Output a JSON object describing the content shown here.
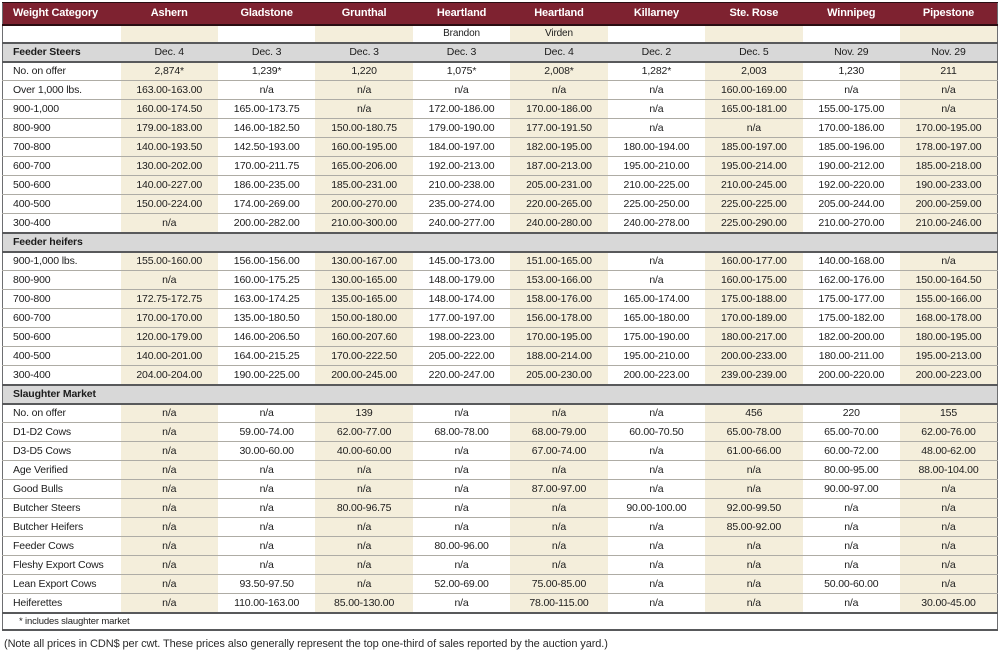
{
  "table": {
    "columns": [
      {
        "label": "Weight Category",
        "sub": ""
      },
      {
        "label": "Ashern",
        "sub": ""
      },
      {
        "label": "Gladstone",
        "sub": ""
      },
      {
        "label": "Grunthal",
        "sub": ""
      },
      {
        "label": "Heartland",
        "sub": "Brandon"
      },
      {
        "label": "Heartland",
        "sub": "Virden"
      },
      {
        "label": "Killarney",
        "sub": ""
      },
      {
        "label": "Ste. Rose",
        "sub": ""
      },
      {
        "label": "Winnipeg",
        "sub": ""
      },
      {
        "label": "Pipestone",
        "sub": ""
      }
    ],
    "sections": [
      {
        "title": "Feeder Steers",
        "header_values": [
          "Dec. 4",
          "Dec. 3",
          "Dec. 3",
          "Dec. 3",
          "Dec. 4",
          "Dec. 2",
          "Dec. 5",
          "Nov. 29",
          "Nov. 29"
        ],
        "rows": [
          {
            "label": "No. on offer",
            "values": [
              "2,874*",
              "1,239*",
              "1,220",
              "1,075*",
              "2,008*",
              "1,282*",
              "2,003",
              "1,230",
              "211"
            ]
          },
          {
            "label": "Over 1,000 lbs.",
            "values": [
              "163.00-163.00",
              "n/a",
              "n/a",
              "n/a",
              "n/a",
              "n/a",
              "160.00-169.00",
              "n/a",
              "n/a"
            ]
          },
          {
            "label": "900-1,000",
            "values": [
              "160.00-174.50",
              "165.00-173.75",
              "n/a",
              "172.00-186.00",
              "170.00-186.00",
              "n/a",
              "165.00-181.00",
              "155.00-175.00",
              "n/a"
            ]
          },
          {
            "label": "800-900",
            "values": [
              "179.00-183.00",
              "146.00-182.50",
              "150.00-180.75",
              "179.00-190.00",
              "177.00-191.50",
              "n/a",
              "n/a",
              "170.00-186.00",
              "170.00-195.00"
            ]
          },
          {
            "label": "700-800",
            "values": [
              "140.00-193.50",
              "142.50-193.00",
              "160.00-195.00",
              "184.00-197.00",
              "182.00-195.00",
              "180.00-194.00",
              "185.00-197.00",
              "185.00-196.00",
              "178.00-197.00"
            ]
          },
          {
            "label": "600-700",
            "values": [
              "130.00-202.00",
              "170.00-211.75",
              "165.00-206.00",
              "192.00-213.00",
              "187.00-213.00",
              "195.00-210.00",
              "195.00-214.00",
              "190.00-212.00",
              "185.00-218.00"
            ]
          },
          {
            "label": "500-600",
            "values": [
              "140.00-227.00",
              "186.00-235.00",
              "185.00-231.00",
              "210.00-238.00",
              "205.00-231.00",
              "210.00-225.00",
              "210.00-245.00",
              "192.00-220.00",
              "190.00-233.00"
            ]
          },
          {
            "label": "400-500",
            "values": [
              "150.00-224.00",
              "174.00-269.00",
              "200.00-270.00",
              "235.00-274.00",
              "220.00-265.00",
              "225.00-250.00",
              "225.00-225.00",
              "205.00-244.00",
              "200.00-259.00"
            ]
          },
          {
            "label": "300-400",
            "values": [
              "n/a",
              "200.00-282.00",
              "210.00-300.00",
              "240.00-277.00",
              "240.00-280.00",
              "240.00-278.00",
              "225.00-290.00",
              "210.00-270.00",
              "210.00-246.00"
            ]
          }
        ]
      },
      {
        "title": "Feeder heifers",
        "header_values": [
          "",
          "",
          "",
          "",
          "",
          "",
          "",
          "",
          ""
        ],
        "rows": [
          {
            "label": "900-1,000 lbs.",
            "values": [
              "155.00-160.00",
              "156.00-156.00",
              "130.00-167.00",
              "145.00-173.00",
              "151.00-165.00",
              "n/a",
              "160.00-177.00",
              "140.00-168.00",
              "n/a"
            ]
          },
          {
            "label": "800-900",
            "values": [
              "n/a",
              "160.00-175.25",
              "130.00-165.00",
              "148.00-179.00",
              "153.00-166.00",
              "n/a",
              "160.00-175.00",
              "162.00-176.00",
              "150.00-164.50"
            ]
          },
          {
            "label": "700-800",
            "values": [
              "172.75-172.75",
              "163.00-174.25",
              "135.00-165.00",
              "148.00-174.00",
              "158.00-176.00",
              "165.00-174.00",
              "175.00-188.00",
              "175.00-177.00",
              "155.00-166.00"
            ]
          },
          {
            "label": "600-700",
            "values": [
              "170.00-170.00",
              "135.00-180.50",
              "150.00-180.00",
              "177.00-197.00",
              "156.00-178.00",
              "165.00-180.00",
              "170.00-189.00",
              "175.00-182.00",
              "168.00-178.00"
            ]
          },
          {
            "label": "500-600",
            "values": [
              "120.00-179.00",
              "146.00-206.50",
              "160.00-207.60",
              "198.00-223.00",
              "170.00-195.00",
              "175.00-190.00",
              "180.00-217.00",
              "182.00-200.00",
              "180.00-195.00"
            ]
          },
          {
            "label": "400-500",
            "values": [
              "140.00-201.00",
              "164.00-215.25",
              "170.00-222.50",
              "205.00-222.00",
              "188.00-214.00",
              "195.00-210.00",
              "200.00-233.00",
              "180.00-211.00",
              "195.00-213.00"
            ]
          },
          {
            "label": "300-400",
            "values": [
              "204.00-204.00",
              "190.00-225.00",
              "200.00-245.00",
              "220.00-247.00",
              "205.00-230.00",
              "200.00-223.00",
              "239.00-239.00",
              "200.00-220.00",
              "200.00-223.00"
            ]
          }
        ]
      },
      {
        "title": "Slaughter Market",
        "header_values": [
          "",
          "",
          "",
          "",
          "",
          "",
          "",
          "",
          ""
        ],
        "rows": [
          {
            "label": "No. on offer",
            "values": [
              "n/a",
              "n/a",
              "139",
              "n/a",
              "n/a",
              "n/a",
              "456",
              "220",
              "155"
            ]
          },
          {
            "label": "D1-D2 Cows",
            "values": [
              "n/a",
              "59.00-74.00",
              "62.00-77.00",
              "68.00-78.00",
              "68.00-79.00",
              "60.00-70.50",
              "65.00-78.00",
              "65.00-70.00",
              "62.00-76.00"
            ]
          },
          {
            "label": "D3-D5 Cows",
            "values": [
              "n/a",
              "30.00-60.00",
              "40.00-60.00",
              "n/a",
              "67.00-74.00",
              "n/a",
              "61.00-66.00",
              "60.00-72.00",
              "48.00-62.00"
            ]
          },
          {
            "label": "Age Verified",
            "values": [
              "n/a",
              "n/a",
              "n/a",
              "n/a",
              "n/a",
              "n/a",
              "n/a",
              "80.00-95.00",
              "88.00-104.00"
            ]
          },
          {
            "label": "Good Bulls",
            "values": [
              "n/a",
              "n/a",
              "n/a",
              "n/a",
              "87.00-97.00",
              "n/a",
              "n/a",
              "90.00-97.00",
              "n/a"
            ]
          },
          {
            "label": "Butcher Steers",
            "values": [
              "n/a",
              "n/a",
              "80.00-96.75",
              "n/a",
              "n/a",
              "90.00-100.00",
              "92.00-99.50",
              "n/a",
              "n/a"
            ]
          },
          {
            "label": "Butcher Heifers",
            "values": [
              "n/a",
              "n/a",
              "n/a",
              "n/a",
              "n/a",
              "n/a",
              "85.00-92.00",
              "n/a",
              "n/a"
            ]
          },
          {
            "label": "Feeder Cows",
            "values": [
              "n/a",
              "n/a",
              "n/a",
              "80.00-96.00",
              "n/a",
              "n/a",
              "n/a",
              "n/a",
              "n/a"
            ]
          },
          {
            "label": "Fleshy Export Cows",
            "values": [
              "n/a",
              "n/a",
              "n/a",
              "n/a",
              "n/a",
              "n/a",
              "n/a",
              "n/a",
              "n/a"
            ]
          },
          {
            "label": "Lean Export Cows",
            "values": [
              "n/a",
              "93.50-97.50",
              "n/a",
              "52.00-69.00",
              "75.00-85.00",
              "n/a",
              "n/a",
              "50.00-60.00",
              "n/a"
            ]
          },
          {
            "label": "Heiferettes",
            "values": [
              "n/a",
              "110.00-163.00",
              "85.00-130.00",
              "n/a",
              "78.00-115.00",
              "n/a",
              "n/a",
              "n/a",
              "30.00-45.00"
            ]
          }
        ]
      }
    ],
    "footnote": "* includes slaughter market"
  },
  "note": "(Note all prices in CDN$ per cwt. These prices also generally represent the top one-third of sales reported by the auction yard.)",
  "colors": {
    "header_bg": "#7e2230",
    "header_text": "#ffffff",
    "section_bg": "#d8d8d8",
    "stripe_bg": "#f4eedb",
    "heavy_border": "#58595b",
    "light_border": "#aeaca5"
  }
}
